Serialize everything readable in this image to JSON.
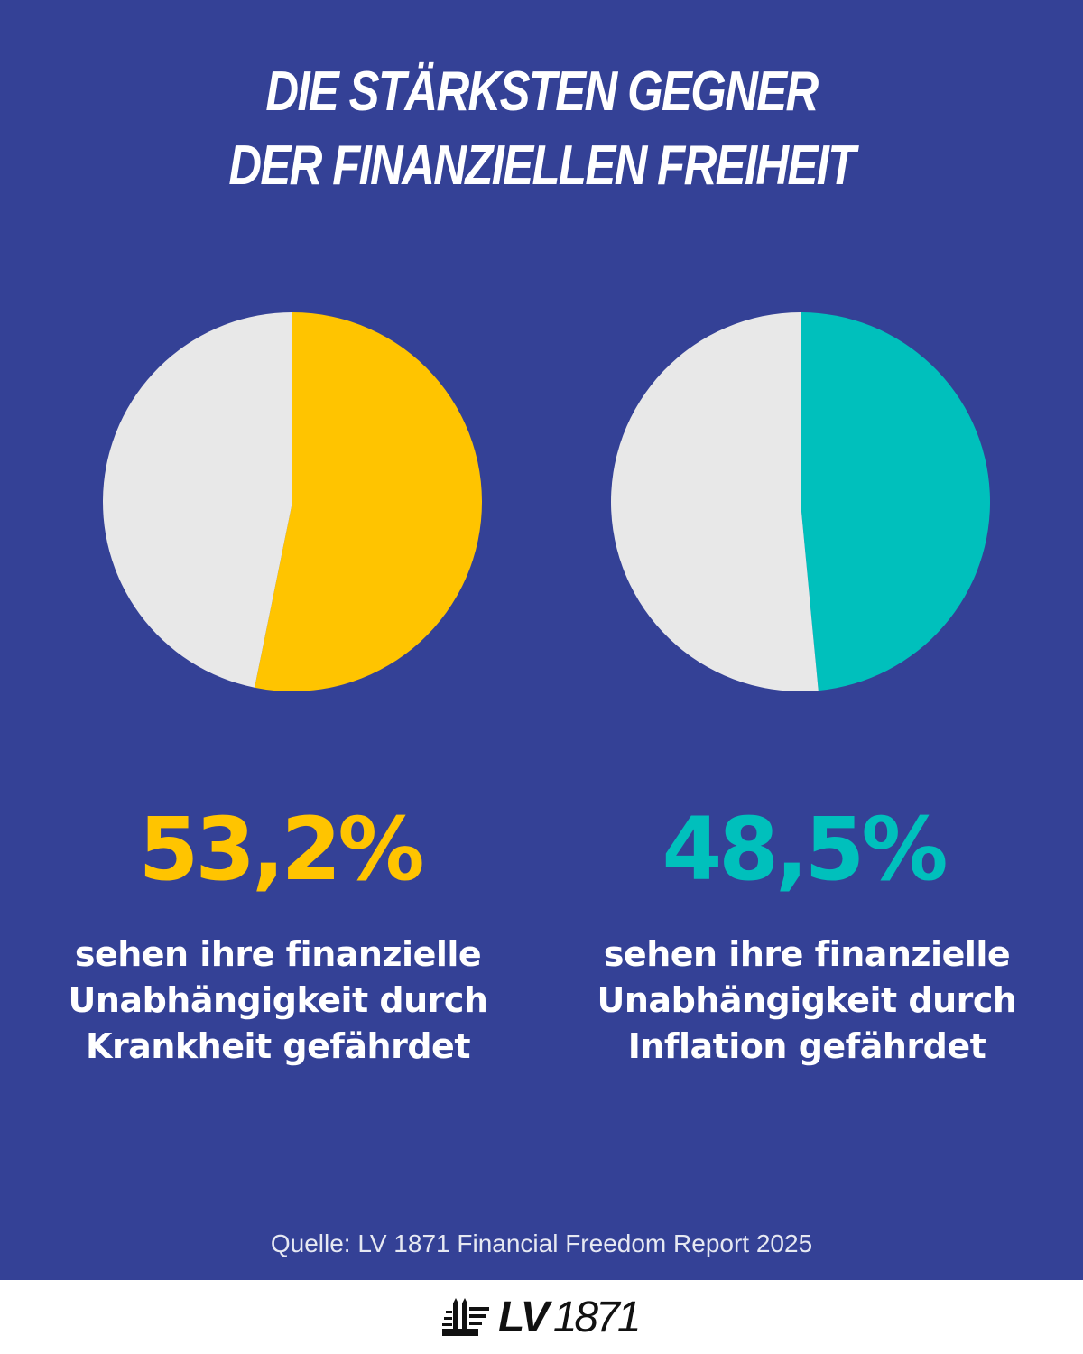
{
  "title_lines": [
    "DIE STÄRKSTEN GEGNER",
    "DER FINANZIELLEN FREIHEIT"
  ],
  "chart_data": [
    {
      "type": "pie",
      "values": [
        53.2,
        46.8
      ],
      "value_label": "53,2%",
      "colors": [
        "#FFC400",
        "#E8E8E8"
      ],
      "description_lines": [
        "sehen ihre finanzielle",
        "Unabhängigkeit durch",
        "Krankheit gefährdet"
      ]
    },
    {
      "type": "pie",
      "values": [
        48.5,
        51.5
      ],
      "value_label": "48,5%",
      "colors": [
        "#00C0BC",
        "#E8E8E8"
      ],
      "description_lines": [
        "sehen ihre finanzielle",
        "Unabhängigkeit durch",
        "Inflation gefährdet"
      ]
    }
  ],
  "colors": {
    "background": "#344196",
    "footer": "#FFFFFF"
  },
  "source": "Quelle: LV 1871 Financial Freedom Report 2025",
  "logo": {
    "brand": "LV",
    "year": "1871",
    "icon": "twin-towers-logo-icon"
  }
}
